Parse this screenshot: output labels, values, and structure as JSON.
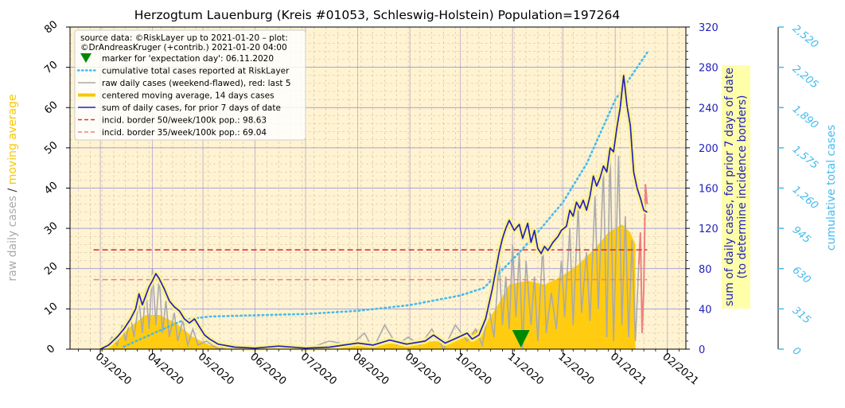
{
  "chart_data": {
    "type": "line",
    "title": "Herzogtum Lauenburg (Kreis #01053, Schleswig-Holstein) Population=197264",
    "left_axis": {
      "label_parts": [
        "raw daily cases",
        "/",
        "moving average"
      ],
      "label_colors": [
        "#aaaaaa",
        "#333333",
        "#f7c800"
      ],
      "ylim": [
        0,
        80
      ],
      "ticks": [
        "0",
        "10",
        "20",
        "30",
        "40",
        "50",
        "60",
        "70",
        "80"
      ]
    },
    "right_axis_1": {
      "label_lines": [
        "sum of daily cases, for prior 7 days of date",
        "(to determine incidence borders)"
      ],
      "ylim": [
        0,
        320
      ],
      "ticks": [
        "0",
        "40",
        "80",
        "120",
        "160",
        "200",
        "240",
        "280",
        "320"
      ],
      "color": "#2222bb"
    },
    "right_axis_2": {
      "label": "cumulative total cases",
      "ylim": [
        0,
        2520
      ],
      "ticks": [
        "0",
        "315",
        "630",
        "945",
        "1,260",
        "1,575",
        "1,890",
        "2,205",
        "2,520"
      ],
      "color": "#44bbee"
    },
    "x_axis": {
      "ticks": [
        "03/2020",
        "04/2020",
        "05/2020",
        "06/2020",
        "07/2020",
        "08/2020",
        "09/2020",
        "10/2020",
        "11/2020",
        "12/2020",
        "01/2021",
        "02/2021"
      ],
      "range": [
        "2020-02-12",
        "2021-02-12"
      ]
    },
    "legend": {
      "placement": "top-left",
      "header": [
        "source data: ©RiskLayer up to 2021-01-20 – plot:",
        "©DrAndreasKruger (+contrib.) 2021-01-20 04:00"
      ],
      "entries": [
        {
          "label": "marker for 'expectation day': 06.11.2020",
          "kind": "marker",
          "color": "#008800"
        },
        {
          "label": "cumulative total cases reported at RiskLayer",
          "kind": "dotted",
          "color": "#44bbee"
        },
        {
          "label": "raw daily cases (weekend-flawed), red: last 5",
          "kind": "line",
          "color": "#aaaaaa"
        },
        {
          "label": "centered moving average, 14 days cases",
          "kind": "thick",
          "color": "#f7c800"
        },
        {
          "label": "sum of daily cases, for prior 7 days of date",
          "kind": "line",
          "color": "#2222bb"
        },
        {
          "label": "incid. border 50/week/100k pop.: 98.63",
          "kind": "dashed",
          "color": "#dd3333"
        },
        {
          "label": "incid. border 35/week/100k pop.: 69.04",
          "kind": "dashed",
          "color": "#f08080"
        }
      ]
    },
    "expectation_day": "2020-11-06",
    "incidence_borders": [
      {
        "name": "50/week/100k",
        "value": 98.63,
        "start": "2020-02-26",
        "end": "2021-01-20",
        "color": "#dd3333"
      },
      {
        "name": "35/week/100k",
        "value": 69.04,
        "start": "2020-02-26",
        "end": "2021-01-20",
        "color": "#f08080"
      }
    ],
    "moving_average_14d": [
      [
        "2020-03-01",
        0
      ],
      [
        "2020-03-10",
        2
      ],
      [
        "2020-03-20",
        6
      ],
      [
        "2020-03-28",
        8.5
      ],
      [
        "2020-04-05",
        8.5
      ],
      [
        "2020-04-15",
        6.5
      ],
      [
        "2020-04-25",
        3
      ],
      [
        "2020-05-05",
        1
      ],
      [
        "2020-05-20",
        0.4
      ],
      [
        "2020-06-10",
        0.3
      ],
      [
        "2020-07-01",
        0.4
      ],
      [
        "2020-07-25",
        0.8
      ],
      [
        "2020-08-20",
        1.4
      ],
      [
        "2020-09-10",
        1.8
      ],
      [
        "2020-09-25",
        2.2
      ],
      [
        "2020-10-05",
        3
      ],
      [
        "2020-10-15",
        6
      ],
      [
        "2020-10-22",
        10
      ],
      [
        "2020-10-30",
        16
      ],
      [
        "2020-11-10",
        17
      ],
      [
        "2020-11-20",
        16
      ],
      [
        "2020-11-30",
        18
      ],
      [
        "2020-12-10",
        21
      ],
      [
        "2020-12-20",
        25
      ],
      [
        "2020-12-28",
        29
      ],
      [
        "2021-01-05",
        31
      ],
      [
        "2021-01-10",
        29
      ],
      [
        "2021-01-13",
        26
      ]
    ],
    "raw_daily_cases": [
      [
        "2020-03-01",
        0
      ],
      [
        "2020-03-05",
        1
      ],
      [
        "2020-03-08",
        3
      ],
      [
        "2020-03-11",
        1
      ],
      [
        "2020-03-14",
        6
      ],
      [
        "2020-03-16",
        2
      ],
      [
        "2020-03-19",
        8
      ],
      [
        "2020-03-21",
        3
      ],
      [
        "2020-03-24",
        12
      ],
      [
        "2020-03-26",
        4
      ],
      [
        "2020-03-28",
        15
      ],
      [
        "2020-03-30",
        5
      ],
      [
        "2020-04-01",
        20
      ],
      [
        "2020-04-03",
        6
      ],
      [
        "2020-04-05",
        18
      ],
      [
        "2020-04-07",
        4
      ],
      [
        "2020-04-09",
        12
      ],
      [
        "2020-04-11",
        3
      ],
      [
        "2020-04-14",
        9
      ],
      [
        "2020-04-16",
        2
      ],
      [
        "2020-04-19",
        7
      ],
      [
        "2020-04-22",
        1
      ],
      [
        "2020-04-25",
        5
      ],
      [
        "2020-04-28",
        1
      ],
      [
        "2020-05-03",
        2
      ],
      [
        "2020-05-10",
        0
      ],
      [
        "2020-05-20",
        1
      ],
      [
        "2020-06-01",
        0
      ],
      [
        "2020-06-15",
        1
      ],
      [
        "2020-07-01",
        0
      ],
      [
        "2020-07-15",
        2
      ],
      [
        "2020-07-28",
        1
      ],
      [
        "2020-08-05",
        4
      ],
      [
        "2020-08-10",
        0
      ],
      [
        "2020-08-17",
        6
      ],
      [
        "2020-08-24",
        1
      ],
      [
        "2020-08-31",
        3
      ],
      [
        "2020-09-07",
        1
      ],
      [
        "2020-09-14",
        5
      ],
      [
        "2020-09-21",
        0
      ],
      [
        "2020-09-28",
        6
      ],
      [
        "2020-10-05",
        2
      ],
      [
        "2020-10-10",
        5
      ],
      [
        "2020-10-14",
        1
      ],
      [
        "2020-10-18",
        10
      ],
      [
        "2020-10-21",
        3
      ],
      [
        "2020-10-24",
        22
      ],
      [
        "2020-10-26",
        6
      ],
      [
        "2020-10-28",
        18
      ],
      [
        "2020-10-30",
        5
      ],
      [
        "2020-11-01",
        26
      ],
      [
        "2020-11-03",
        8
      ],
      [
        "2020-11-05",
        24
      ],
      [
        "2020-11-07",
        0
      ],
      [
        "2020-11-09",
        22
      ],
      [
        "2020-11-12",
        6
      ],
      [
        "2020-11-14",
        18
      ],
      [
        "2020-11-16",
        2
      ],
      [
        "2020-11-19",
        26
      ],
      [
        "2020-11-21",
        4
      ],
      [
        "2020-11-24",
        14
      ],
      [
        "2020-11-27",
        5
      ],
      [
        "2020-11-30",
        22
      ],
      [
        "2020-12-02",
        8
      ],
      [
        "2020-12-05",
        30
      ],
      [
        "2020-12-07",
        6
      ],
      [
        "2020-12-10",
        36
      ],
      [
        "2020-12-12",
        9
      ],
      [
        "2020-12-15",
        24
      ],
      [
        "2020-12-17",
        7
      ],
      [
        "2020-12-20",
        38
      ],
      [
        "2020-12-22",
        10
      ],
      [
        "2020-12-25",
        45
      ],
      [
        "2020-12-27",
        3
      ],
      [
        "2020-12-29",
        50
      ],
      [
        "2020-12-31",
        2
      ],
      [
        "2021-01-03",
        48
      ],
      [
        "2021-01-05",
        6
      ],
      [
        "2021-01-07",
        33
      ],
      [
        "2021-01-09",
        3
      ],
      [
        "2021-01-11",
        27
      ],
      [
        "2021-01-13",
        2
      ],
      [
        "2021-01-15",
        21
      ]
    ],
    "raw_daily_cases_last5": [
      [
        "2021-01-15",
        21
      ],
      [
        "2021-01-16",
        29
      ],
      [
        "2021-01-17",
        4
      ],
      [
        "2021-01-18",
        15
      ],
      [
        "2021-01-19",
        41
      ],
      [
        "2021-01-20",
        36
      ]
    ],
    "sum_7_days": [
      [
        "2020-03-01",
        0
      ],
      [
        "2020-03-06",
        4
      ],
      [
        "2020-03-11",
        12
      ],
      [
        "2020-03-15",
        20
      ],
      [
        "2020-03-19",
        30
      ],
      [
        "2020-03-22",
        40
      ],
      [
        "2020-03-24",
        55
      ],
      [
        "2020-03-26",
        44
      ],
      [
        "2020-03-30",
        62
      ],
      [
        "2020-04-01",
        68
      ],
      [
        "2020-04-03",
        75
      ],
      [
        "2020-04-05",
        70
      ],
      [
        "2020-04-08",
        60
      ],
      [
        "2020-04-11",
        48
      ],
      [
        "2020-04-14",
        42
      ],
      [
        "2020-04-17",
        38
      ],
      [
        "2020-04-20",
        30
      ],
      [
        "2020-04-23",
        26
      ],
      [
        "2020-04-26",
        30
      ],
      [
        "2020-04-29",
        22
      ],
      [
        "2020-05-02",
        14
      ],
      [
        "2020-05-05",
        10
      ],
      [
        "2020-05-10",
        5
      ],
      [
        "2020-05-20",
        2
      ],
      [
        "2020-06-01",
        1
      ],
      [
        "2020-06-15",
        3
      ],
      [
        "2020-07-01",
        1
      ],
      [
        "2020-07-15",
        2
      ],
      [
        "2020-08-01",
        6
      ],
      [
        "2020-08-10",
        4
      ],
      [
        "2020-08-20",
        9
      ],
      [
        "2020-08-30",
        5
      ],
      [
        "2020-09-10",
        8
      ],
      [
        "2020-09-15",
        14
      ],
      [
        "2020-09-22",
        6
      ],
      [
        "2020-09-30",
        12
      ],
      [
        "2020-10-05",
        16
      ],
      [
        "2020-10-08",
        10
      ],
      [
        "2020-10-12",
        14
      ],
      [
        "2020-10-16",
        30
      ],
      [
        "2020-10-20",
        60
      ],
      [
        "2020-10-24",
        96
      ],
      [
        "2020-10-26",
        110
      ],
      [
        "2020-10-28",
        120
      ],
      [
        "2020-10-30",
        128
      ],
      [
        "2020-11-02",
        118
      ],
      [
        "2020-11-05",
        124
      ],
      [
        "2020-11-07",
        110
      ],
      [
        "2020-11-10",
        125
      ],
      [
        "2020-11-12",
        106
      ],
      [
        "2020-11-14",
        118
      ],
      [
        "2020-11-16",
        100
      ],
      [
        "2020-11-18",
        95
      ],
      [
        "2020-11-20",
        102
      ],
      [
        "2020-11-22",
        98
      ],
      [
        "2020-11-25",
        106
      ],
      [
        "2020-11-28",
        112
      ],
      [
        "2020-11-30",
        118
      ],
      [
        "2020-12-03",
        122
      ],
      [
        "2020-12-05",
        138
      ],
      [
        "2020-12-07",
        132
      ],
      [
        "2020-12-09",
        146
      ],
      [
        "2020-12-11",
        140
      ],
      [
        "2020-12-13",
        148
      ],
      [
        "2020-12-15",
        138
      ],
      [
        "2020-12-17",
        152
      ],
      [
        "2020-12-19",
        172
      ],
      [
        "2020-12-21",
        162
      ],
      [
        "2020-12-23",
        170
      ],
      [
        "2020-12-25",
        182
      ],
      [
        "2020-12-27",
        176
      ],
      [
        "2020-12-29",
        200
      ],
      [
        "2020-12-31",
        196
      ],
      [
        "2021-01-02",
        220
      ],
      [
        "2021-01-04",
        240
      ],
      [
        "2021-01-06",
        272
      ],
      [
        "2021-01-08",
        242
      ],
      [
        "2021-01-10",
        222
      ],
      [
        "2021-01-12",
        176
      ],
      [
        "2021-01-14",
        160
      ],
      [
        "2021-01-16",
        150
      ],
      [
        "2021-01-18",
        138
      ],
      [
        "2021-01-20",
        136
      ]
    ],
    "cumulative_total": [
      [
        "2020-03-15",
        20
      ],
      [
        "2020-04-01",
        120
      ],
      [
        "2020-04-20",
        230
      ],
      [
        "2020-05-05",
        255
      ],
      [
        "2020-06-01",
        265
      ],
      [
        "2020-07-01",
        275
      ],
      [
        "2020-08-01",
        300
      ],
      [
        "2020-09-01",
        345
      ],
      [
        "2020-10-01",
        420
      ],
      [
        "2020-10-15",
        480
      ],
      [
        "2020-11-01",
        700
      ],
      [
        "2020-11-15",
        900
      ],
      [
        "2020-12-01",
        1150
      ],
      [
        "2020-12-15",
        1450
      ],
      [
        "2021-01-01",
        1950
      ],
      [
        "2021-01-20",
        2320
      ]
    ]
  }
}
